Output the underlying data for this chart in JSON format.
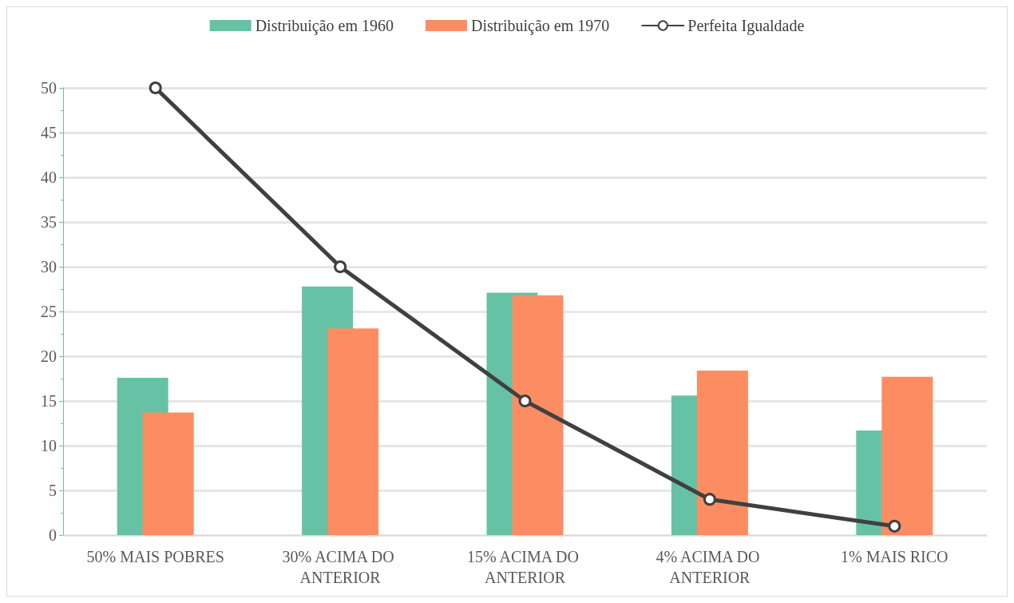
{
  "chart_data": {
    "type": "bar",
    "categories": [
      "50% MAIS POBRES",
      "30% ACIMA DO ANTERIOR",
      "15% ACIMA DO ANTERIOR",
      "4% ACIMA DO ANTERIOR",
      "1% MAIS RICO"
    ],
    "series": [
      {
        "name": "Distribuição em 1960",
        "color": "#66c2a5",
        "values": [
          17.6,
          27.8,
          27.1,
          15.6,
          11.7
        ]
      },
      {
        "name": "Distribuição em 1970",
        "color": "#fc8d62",
        "values": [
          13.7,
          23.1,
          26.8,
          18.4,
          17.7
        ]
      },
      {
        "name": "Perfeita Igualdade",
        "type": "line",
        "color": "#404040",
        "values": [
          50,
          30,
          15,
          4,
          1
        ]
      }
    ],
    "ylim": [
      0,
      50
    ],
    "yticks": [
      0,
      5,
      10,
      15,
      20,
      25,
      30,
      35,
      40,
      45,
      50
    ],
    "grid": "y",
    "legend": "top",
    "marker": "circle",
    "line_style": "solid"
  }
}
